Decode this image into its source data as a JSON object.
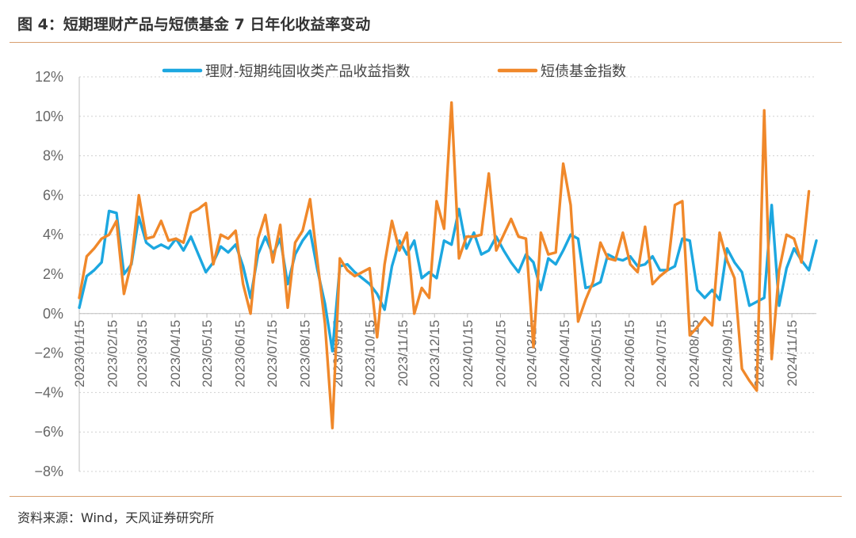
{
  "title": "图 4：短期理财产品与短债基金 7 日年化收益率变动",
  "source": "资料来源：Wind，天风证券研究所",
  "chart_data": {
    "type": "line",
    "ylim": [
      -8,
      12
    ],
    "yticks": [
      12,
      10,
      8,
      6,
      4,
      2,
      0,
      -2,
      -4,
      -6,
      -8
    ],
    "ytick_labels": [
      "12%",
      "10%",
      "8%",
      "6%",
      "4%",
      "2%",
      "0%",
      "−2%",
      "−4%",
      "−6%",
      "−8%"
    ],
    "grid": "horizontal dotted",
    "legend_position": "top",
    "x_tick_labels": [
      "2023/01/15",
      "2023/02/15",
      "2023/03/15",
      "2023/04/15",
      "2023/05/15",
      "2023/06/15",
      "2023/07/15",
      "2023/08/15",
      "2023/09/15",
      "2023/10/15",
      "2023/11/15",
      "2023/12/15",
      "2024/01/15",
      "2024/02/15",
      "2024/03/15",
      "2024/04/15",
      "2024/05/15",
      "2024/06/15",
      "2024/07/15",
      "2024/08/15",
      "2024/09/15",
      "2024/10/15",
      "2024/11/15"
    ],
    "series": [
      {
        "name": "理财-短期纯固收类产品收益指数",
        "color": "#1ca7e0",
        "points": [
          [
            "2023/01/15",
            0.3
          ],
          [
            "2023/01/22",
            1.9
          ],
          [
            "2023/01/29",
            2.2
          ],
          [
            "2023/02/05",
            2.6
          ],
          [
            "2023/02/12",
            5.2
          ],
          [
            "2023/02/19",
            5.1
          ],
          [
            "2023/02/26",
            2.0
          ],
          [
            "2023/03/05",
            2.5
          ],
          [
            "2023/03/12",
            4.9
          ],
          [
            "2023/03/19",
            3.6
          ],
          [
            "2023/03/26",
            3.3
          ],
          [
            "2023/04/02",
            3.5
          ],
          [
            "2023/04/09",
            3.3
          ],
          [
            "2023/04/16",
            3.8
          ],
          [
            "2023/04/23",
            3.2
          ],
          [
            "2023/04/30",
            3.9
          ],
          [
            "2023/05/07",
            3.0
          ],
          [
            "2023/05/14",
            2.1
          ],
          [
            "2023/05/21",
            2.6
          ],
          [
            "2023/05/28",
            3.4
          ],
          [
            "2023/06/04",
            3.1
          ],
          [
            "2023/06/11",
            3.5
          ],
          [
            "2023/06/18",
            2.4
          ],
          [
            "2023/06/25",
            0.8
          ],
          [
            "2023/07/02",
            3.0
          ],
          [
            "2023/07/09",
            3.9
          ],
          [
            "2023/07/16",
            3.0
          ],
          [
            "2023/07/23",
            3.8
          ],
          [
            "2023/07/30",
            1.5
          ],
          [
            "2023/08/06",
            3.0
          ],
          [
            "2023/08/13",
            3.7
          ],
          [
            "2023/08/20",
            4.2
          ],
          [
            "2023/08/27",
            2.2
          ],
          [
            "2023/09/03",
            0.5
          ],
          [
            "2023/09/10",
            -1.9
          ],
          [
            "2023/09/17",
            2.4
          ],
          [
            "2023/09/24",
            2.5
          ],
          [
            "2023/10/01",
            2.1
          ],
          [
            "2023/10/08",
            1.8
          ],
          [
            "2023/10/15",
            1.5
          ],
          [
            "2023/10/22",
            1.0
          ],
          [
            "2023/10/29",
            0.2
          ],
          [
            "2023/11/05",
            2.4
          ],
          [
            "2023/11/12",
            3.7
          ],
          [
            "2023/11/19",
            3.0
          ],
          [
            "2023/11/26",
            3.7
          ],
          [
            "2023/12/03",
            1.8
          ],
          [
            "2023/12/10",
            2.1
          ],
          [
            "2023/12/17",
            1.8
          ],
          [
            "2023/12/24",
            3.7
          ],
          [
            "2023/12/31",
            3.5
          ],
          [
            "2024/01/07",
            5.3
          ],
          [
            "2024/01/14",
            3.3
          ],
          [
            "2024/01/21",
            4.1
          ],
          [
            "2024/01/28",
            3.0
          ],
          [
            "2024/02/04",
            3.2
          ],
          [
            "2024/02/11",
            3.9
          ],
          [
            "2024/02/18",
            3.2
          ],
          [
            "2024/02/25",
            2.6
          ],
          [
            "2024/03/03",
            2.1
          ],
          [
            "2024/03/10",
            3.0
          ],
          [
            "2024/03/17",
            2.6
          ],
          [
            "2024/03/24",
            1.2
          ],
          [
            "2024/03/31",
            2.8
          ],
          [
            "2024/04/07",
            2.5
          ],
          [
            "2024/04/14",
            3.2
          ],
          [
            "2024/04/21",
            4.0
          ],
          [
            "2024/04/28",
            3.8
          ],
          [
            "2024/05/05",
            1.3
          ],
          [
            "2024/05/12",
            1.4
          ],
          [
            "2024/05/19",
            1.6
          ],
          [
            "2024/05/26",
            3.0
          ],
          [
            "2024/06/02",
            2.8
          ],
          [
            "2024/06/09",
            2.7
          ],
          [
            "2024/06/16",
            2.9
          ],
          [
            "2024/06/23",
            2.4
          ],
          [
            "2024/06/30",
            2.5
          ],
          [
            "2024/07/07",
            2.9
          ],
          [
            "2024/07/14",
            2.2
          ],
          [
            "2024/07/21",
            2.2
          ],
          [
            "2024/07/28",
            2.4
          ],
          [
            "2024/08/04",
            3.8
          ],
          [
            "2024/08/11",
            3.7
          ],
          [
            "2024/08/18",
            1.2
          ],
          [
            "2024/08/25",
            0.8
          ],
          [
            "2024/09/01",
            1.2
          ],
          [
            "2024/09/08",
            0.7
          ],
          [
            "2024/09/15",
            3.3
          ],
          [
            "2024/09/22",
            2.6
          ],
          [
            "2024/09/29",
            2.1
          ],
          [
            "2024/10/06",
            0.4
          ],
          [
            "2024/10/13",
            0.6
          ],
          [
            "2024/10/20",
            0.8
          ],
          [
            "2024/10/27",
            5.5
          ],
          [
            "2024/11/03",
            0.4
          ],
          [
            "2024/11/10",
            2.3
          ],
          [
            "2024/11/17",
            3.3
          ],
          [
            "2024/11/24",
            2.7
          ],
          [
            "2024/12/01",
            2.2
          ],
          [
            "2024/12/08",
            3.7
          ]
        ]
      },
      {
        "name": "短债基金指数",
        "color": "#f0882a",
        "points": [
          [
            "2023/01/15",
            0.8
          ],
          [
            "2023/01/22",
            2.9
          ],
          [
            "2023/01/29",
            3.3
          ],
          [
            "2023/02/05",
            3.8
          ],
          [
            "2023/02/12",
            4.0
          ],
          [
            "2023/02/19",
            4.7
          ],
          [
            "2023/02/26",
            1.0
          ],
          [
            "2023/03/05",
            2.6
          ],
          [
            "2023/03/12",
            6.0
          ],
          [
            "2023/03/19",
            3.8
          ],
          [
            "2023/03/26",
            3.9
          ],
          [
            "2023/04/02",
            4.7
          ],
          [
            "2023/04/09",
            3.7
          ],
          [
            "2023/04/16",
            3.8
          ],
          [
            "2023/04/23",
            3.6
          ],
          [
            "2023/04/30",
            5.1
          ],
          [
            "2023/05/07",
            5.3
          ],
          [
            "2023/05/14",
            5.6
          ],
          [
            "2023/05/21",
            2.5
          ],
          [
            "2023/05/28",
            4.0
          ],
          [
            "2023/06/04",
            3.8
          ],
          [
            "2023/06/11",
            4.2
          ],
          [
            "2023/06/18",
            1.5
          ],
          [
            "2023/06/25",
            0.0
          ],
          [
            "2023/07/02",
            3.8
          ],
          [
            "2023/07/09",
            5.0
          ],
          [
            "2023/07/16",
            2.6
          ],
          [
            "2023/07/23",
            4.5
          ],
          [
            "2023/07/30",
            0.3
          ],
          [
            "2023/08/06",
            3.6
          ],
          [
            "2023/08/13",
            4.2
          ],
          [
            "2023/08/20",
            5.8
          ],
          [
            "2023/08/27",
            2.6
          ],
          [
            "2023/09/03",
            -0.5
          ],
          [
            "2023/09/10",
            -5.8
          ],
          [
            "2023/09/17",
            2.8
          ],
          [
            "2023/09/24",
            2.2
          ],
          [
            "2023/10/01",
            1.9
          ],
          [
            "2023/10/08",
            2.1
          ],
          [
            "2023/10/15",
            2.3
          ],
          [
            "2023/10/22",
            -1.2
          ],
          [
            "2023/10/29",
            2.5
          ],
          [
            "2023/11/05",
            4.7
          ],
          [
            "2023/11/12",
            3.2
          ],
          [
            "2023/11/19",
            4.1
          ],
          [
            "2023/11/26",
            0.0
          ],
          [
            "2023/12/03",
            1.3
          ],
          [
            "2023/12/10",
            0.8
          ],
          [
            "2023/12/17",
            5.7
          ],
          [
            "2023/12/24",
            4.3
          ],
          [
            "2023/12/31",
            10.7
          ],
          [
            "2024/01/07",
            2.8
          ],
          [
            "2024/01/14",
            3.9
          ],
          [
            "2024/01/21",
            3.9
          ],
          [
            "2024/01/28",
            4.0
          ],
          [
            "2024/02/04",
            7.1
          ],
          [
            "2024/02/11",
            3.2
          ],
          [
            "2024/02/18",
            4.0
          ],
          [
            "2024/02/25",
            4.8
          ],
          [
            "2024/03/03",
            3.9
          ],
          [
            "2024/03/10",
            3.8
          ],
          [
            "2024/03/17",
            -1.7
          ],
          [
            "2024/03/24",
            4.1
          ],
          [
            "2024/03/31",
            3.0
          ],
          [
            "2024/04/07",
            3.1
          ],
          [
            "2024/04/14",
            7.6
          ],
          [
            "2024/04/21",
            5.5
          ],
          [
            "2024/04/28",
            -0.4
          ],
          [
            "2024/05/05",
            0.7
          ],
          [
            "2024/05/12",
            1.6
          ],
          [
            "2024/05/19",
            3.6
          ],
          [
            "2024/05/26",
            2.8
          ],
          [
            "2024/06/02",
            2.7
          ],
          [
            "2024/06/09",
            4.1
          ],
          [
            "2024/06/16",
            2.5
          ],
          [
            "2024/06/23",
            2.1
          ],
          [
            "2024/06/30",
            4.4
          ],
          [
            "2024/07/07",
            1.5
          ],
          [
            "2024/07/14",
            1.9
          ],
          [
            "2024/07/21",
            2.2
          ],
          [
            "2024/07/28",
            5.5
          ],
          [
            "2024/08/04",
            5.7
          ],
          [
            "2024/08/11",
            -1.1
          ],
          [
            "2024/08/18",
            -0.7
          ],
          [
            "2024/08/25",
            -0.2
          ],
          [
            "2024/09/01",
            -0.6
          ],
          [
            "2024/09/08",
            4.1
          ],
          [
            "2024/09/15",
            2.7
          ],
          [
            "2024/09/22",
            1.8
          ],
          [
            "2024/09/29",
            -2.8
          ],
          [
            "2024/10/06",
            -3.4
          ],
          [
            "2024/10/13",
            -3.9
          ],
          [
            "2024/10/20",
            10.3
          ],
          [
            "2024/10/27",
            -2.3
          ],
          [
            "2024/11/03",
            2.2
          ],
          [
            "2024/11/10",
            4.0
          ],
          [
            "2024/11/17",
            3.8
          ],
          [
            "2024/11/24",
            2.6
          ],
          [
            "2024/12/01",
            6.2
          ]
        ]
      }
    ]
  }
}
